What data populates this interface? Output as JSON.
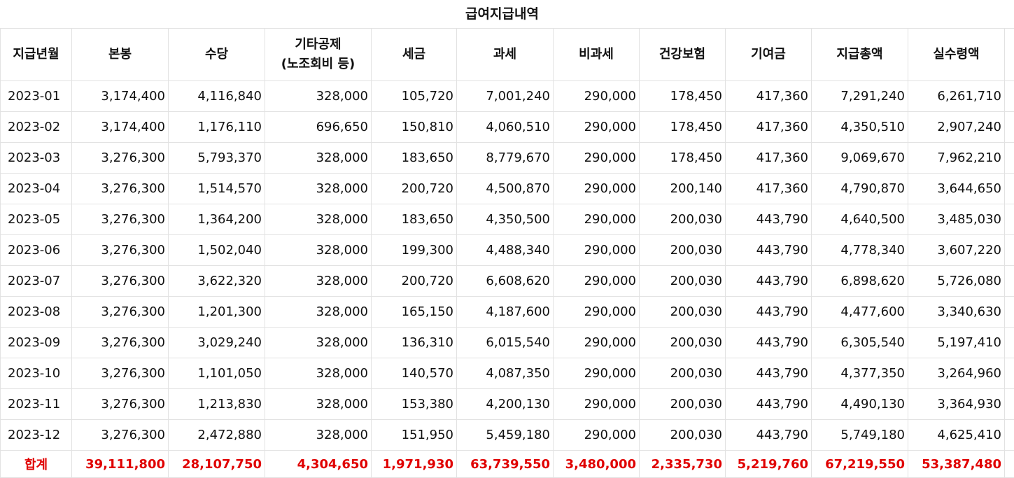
{
  "title": "급여지급내역",
  "table": {
    "header": [
      "지급년월",
      "본봉",
      "수당",
      "기타공제\n(노조회비 등)",
      "세금",
      "과세",
      "비과세",
      "건강보험",
      "기여금",
      "지급총액",
      "실수령액"
    ],
    "rows": [
      [
        "2023-01",
        "3,174,400",
        "4,116,840",
        "328,000",
        "105,720",
        "7,001,240",
        "290,000",
        "178,450",
        "417,360",
        "7,291,240",
        "6,261,710"
      ],
      [
        "2023-02",
        "3,174,400",
        "1,176,110",
        "696,650",
        "150,810",
        "4,060,510",
        "290,000",
        "178,450",
        "417,360",
        "4,350,510",
        "2,907,240"
      ],
      [
        "2023-03",
        "3,276,300",
        "5,793,370",
        "328,000",
        "183,650",
        "8,779,670",
        "290,000",
        "178,450",
        "417,360",
        "9,069,670",
        "7,962,210"
      ],
      [
        "2023-04",
        "3,276,300",
        "1,514,570",
        "328,000",
        "200,720",
        "4,500,870",
        "290,000",
        "200,140",
        "417,360",
        "4,790,870",
        "3,644,650"
      ],
      [
        "2023-05",
        "3,276,300",
        "1,364,200",
        "328,000",
        "183,650",
        "4,350,500",
        "290,000",
        "200,030",
        "443,790",
        "4,640,500",
        "3,485,030"
      ],
      [
        "2023-06",
        "3,276,300",
        "1,502,040",
        "328,000",
        "199,300",
        "4,488,340",
        "290,000",
        "200,030",
        "443,790",
        "4,778,340",
        "3,607,220"
      ],
      [
        "2023-07",
        "3,276,300",
        "3,622,320",
        "328,000",
        "200,720",
        "6,608,620",
        "290,000",
        "200,030",
        "443,790",
        "6,898,620",
        "5,726,080"
      ],
      [
        "2023-08",
        "3,276,300",
        "1,201,300",
        "328,000",
        "165,150",
        "4,187,600",
        "290,000",
        "200,030",
        "443,790",
        "4,477,600",
        "3,340,630"
      ],
      [
        "2023-09",
        "3,276,300",
        "3,029,240",
        "328,000",
        "136,310",
        "6,015,540",
        "290,000",
        "200,030",
        "443,790",
        "6,305,540",
        "5,197,410"
      ],
      [
        "2023-10",
        "3,276,300",
        "1,101,050",
        "328,000",
        "140,570",
        "4,087,350",
        "290,000",
        "200,030",
        "443,790",
        "4,377,350",
        "3,264,960"
      ],
      [
        "2023-11",
        "3,276,300",
        "1,213,830",
        "328,000",
        "153,380",
        "4,200,130",
        "290,000",
        "200,030",
        "443,790",
        "4,490,130",
        "3,364,930"
      ],
      [
        "2023-12",
        "3,276,300",
        "2,472,880",
        "328,000",
        "151,950",
        "5,459,180",
        "290,000",
        "200,030",
        "443,790",
        "5,749,180",
        "4,625,410"
      ]
    ],
    "total": [
      "합계",
      "39,111,800",
      "28,107,750",
      "4,304,650",
      "1,971,930",
      "63,739,550",
      "3,480,000",
      "2,335,730",
      "5,219,760",
      "67,219,550",
      "53,387,480"
    ]
  }
}
